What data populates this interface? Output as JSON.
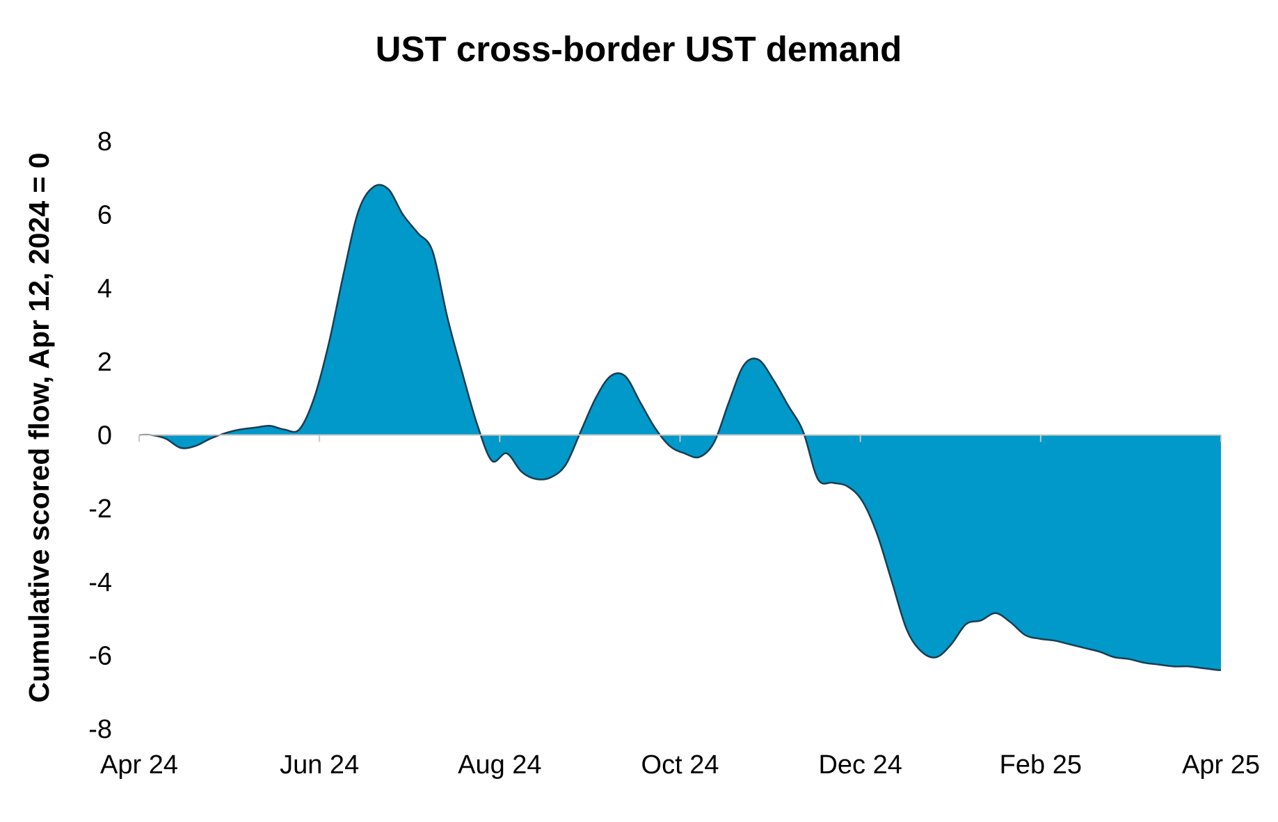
{
  "chart_data": {
    "type": "area",
    "title": "UST cross-border UST demand",
    "xlabel": "",
    "ylabel": "Cumulative scored flow, Apr 12, 2024 = 0",
    "x_tick_labels": [
      "Apr 24",
      "Jun 24",
      "Aug 24",
      "Oct 24",
      "Dec 24",
      "Feb 25",
      "Apr 25"
    ],
    "y_tick_labels": [
      "8",
      "6",
      "4",
      "2",
      "0",
      "-2",
      "-4",
      "-6",
      "-8"
    ],
    "y_ticks": [
      8,
      6,
      4,
      2,
      0,
      -2,
      -4,
      -6,
      -8
    ],
    "ylim": [
      -8,
      8
    ],
    "xlim": [
      "2024-04-01",
      "2025-04-01"
    ],
    "grid": false,
    "legend": "none",
    "colors": {
      "fill": "#0099c9",
      "line": "#1a3d50",
      "axis": "#c8c8c8"
    },
    "series": [
      {
        "x": [
          "2024-04-01",
          "2024-04-05",
          "2024-04-10",
          "2024-04-15",
          "2024-04-20",
          "2024-04-25",
          "2024-04-30",
          "2024-05-05",
          "2024-05-10",
          "2024-05-15",
          "2024-05-20",
          "2024-05-25",
          "2024-05-30",
          "2024-06-04",
          "2024-06-09",
          "2024-06-14",
          "2024-06-19",
          "2024-06-24",
          "2024-06-29",
          "2024-07-04",
          "2024-07-09",
          "2024-07-14",
          "2024-07-19",
          "2024-07-24",
          "2024-07-29",
          "2024-08-03",
          "2024-08-08",
          "2024-08-13",
          "2024-08-18",
          "2024-08-23",
          "2024-08-28",
          "2024-09-02",
          "2024-09-07",
          "2024-09-12",
          "2024-09-17",
          "2024-09-22",
          "2024-09-27",
          "2024-10-02",
          "2024-10-07",
          "2024-10-12",
          "2024-10-17",
          "2024-10-22",
          "2024-10-27",
          "2024-11-01",
          "2024-11-06",
          "2024-11-11",
          "2024-11-16",
          "2024-11-21",
          "2024-11-26",
          "2024-12-01",
          "2024-12-06",
          "2024-12-11",
          "2024-12-16",
          "2024-12-21",
          "2024-12-26",
          "2024-12-31",
          "2025-01-05",
          "2025-01-10",
          "2025-01-15",
          "2025-01-20",
          "2025-01-25",
          "2025-01-30",
          "2025-02-04",
          "2025-02-09",
          "2025-02-14",
          "2025-02-19",
          "2025-02-24",
          "2025-03-01",
          "2025-03-06",
          "2025-03-11",
          "2025-03-16",
          "2025-03-21",
          "2025-03-26",
          "2025-03-31",
          "2025-04-01"
        ],
        "y": [
          0,
          0,
          -0.1,
          -0.35,
          -0.3,
          -0.1,
          0.05,
          0.15,
          0.2,
          0.25,
          0.15,
          0.15,
          1.0,
          2.5,
          4.4,
          6.1,
          6.75,
          6.7,
          6.0,
          5.5,
          5.0,
          3.2,
          1.7,
          0.3,
          -0.7,
          -0.5,
          -1.0,
          -1.2,
          -1.15,
          -0.8,
          0.1,
          1.0,
          1.6,
          1.6,
          0.9,
          0.2,
          -0.3,
          -0.5,
          -0.6,
          -0.2,
          0.9,
          1.9,
          2.05,
          1.5,
          0.8,
          0.1,
          -1.2,
          -1.3,
          -1.4,
          -1.8,
          -2.7,
          -4.0,
          -5.3,
          -5.9,
          -6.05,
          -5.7,
          -5.15,
          -5.05,
          -4.85,
          -5.1,
          -5.45,
          -5.55,
          -5.6,
          -5.7,
          -5.8,
          -5.9,
          -6.05,
          -6.1,
          -6.2,
          -6.25,
          -6.3,
          -6.3,
          -6.35,
          -6.4,
          -6.4
        ]
      }
    ]
  }
}
